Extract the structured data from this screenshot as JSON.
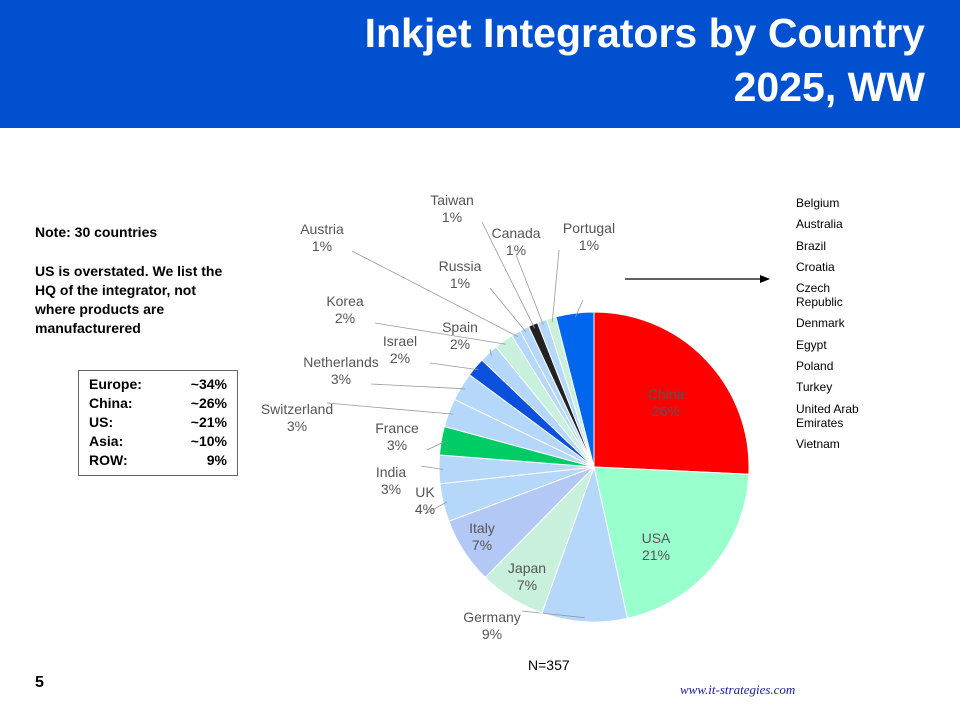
{
  "chart_data": {
    "type": "pie",
    "title": [
      "Inkjet Integrators by Country",
      "2025, WW"
    ],
    "categories": [
      "China",
      "USA",
      "Germany",
      "Japan",
      "Italy",
      "UK",
      "India",
      "France",
      "Switzerland",
      "Netherlands",
      "Israel",
      "Spain",
      "Korea",
      "Austria",
      "Russia",
      "Taiwan",
      "Canada",
      "Portugal",
      null
    ],
    "values": [
      26,
      21,
      9,
      7,
      7,
      4,
      3,
      3,
      3,
      3,
      2,
      2,
      2,
      1,
      1,
      1,
      1,
      1,
      4
    ],
    "value_labels": [
      "26%",
      "21%",
      "9%",
      "7%",
      "7%",
      "4%",
      "3%",
      "3%",
      "3%",
      "3%",
      "2%",
      "2%",
      "2%",
      "1%",
      "1%",
      "1%",
      "1%",
      "1%",
      null
    ],
    "colors": [
      "#ff0000",
      "#99ffcc",
      "#b4d7fa",
      "#c8f0dc",
      "#b4c8f5",
      "#b4d7fa",
      "#b4d7fa",
      "#00cc66",
      "#b4d7fa",
      "#b4d7fa",
      "#0a50dc",
      "#b4d7fa",
      "#c8f0dc",
      "#b4d7fa",
      "#b4d7fa",
      "#222222",
      "#b4d7fa",
      "#c8f0dc",
      "#0066ee"
    ],
    "annotations": {
      "note": "Note: 30 countries",
      "caveat_lines": [
        "US is overstated.  We list the",
        "HQ of the integrator, not",
        "where products are",
        "manufacturered"
      ],
      "regions": [
        [
          "Europe:",
          "~34%"
        ],
        [
          "China:",
          "~26%"
        ],
        [
          "US:",
          "~21%"
        ],
        [
          "Asia:",
          "~10%"
        ],
        [
          "ROW:",
          "9%"
        ]
      ],
      "other_countries": [
        "Belgium",
        "Australia",
        "Brazil",
        "Croatia",
        "Czech Republic",
        "Denmark",
        "Egypt",
        "Poland",
        "Turkey",
        "United Arab Emirates",
        "Vietnam"
      ],
      "sample": "N=357"
    }
  },
  "page_number": "5",
  "website": "www.it-strategies.com"
}
